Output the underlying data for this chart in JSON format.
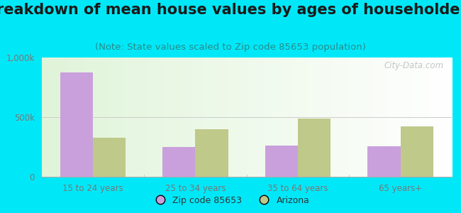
{
  "title": "Breakdown of mean house values by ages of householders",
  "subtitle": "(Note: State values scaled to Zip code 85653 population)",
  "categories": [
    "15 to 24 years",
    "25 to 34 years",
    "35 to 64 years",
    "65 years+"
  ],
  "zip_values": [
    875000,
    250000,
    260000,
    255000
  ],
  "az_values": [
    325000,
    400000,
    490000,
    420000
  ],
  "zip_color": "#c9a0dc",
  "az_color": "#bec98a",
  "background_outer": "#00e8f8",
  "ylim": [
    0,
    1000000
  ],
  "ytick_labels": [
    "0",
    "500k",
    "1,000k"
  ],
  "legend_zip_label": "Zip code 85653",
  "legend_az_label": "Arizona",
  "title_fontsize": 15,
  "subtitle_fontsize": 9.5,
  "axis_label_fontsize": 8.5,
  "legend_fontsize": 9,
  "watermark": "City-Data.com",
  "bar_width": 0.32,
  "grid_color": "#cccccc",
  "title_color": "#1a1a1a",
  "subtitle_color": "#2a8a8a",
  "tick_color": "#777777"
}
